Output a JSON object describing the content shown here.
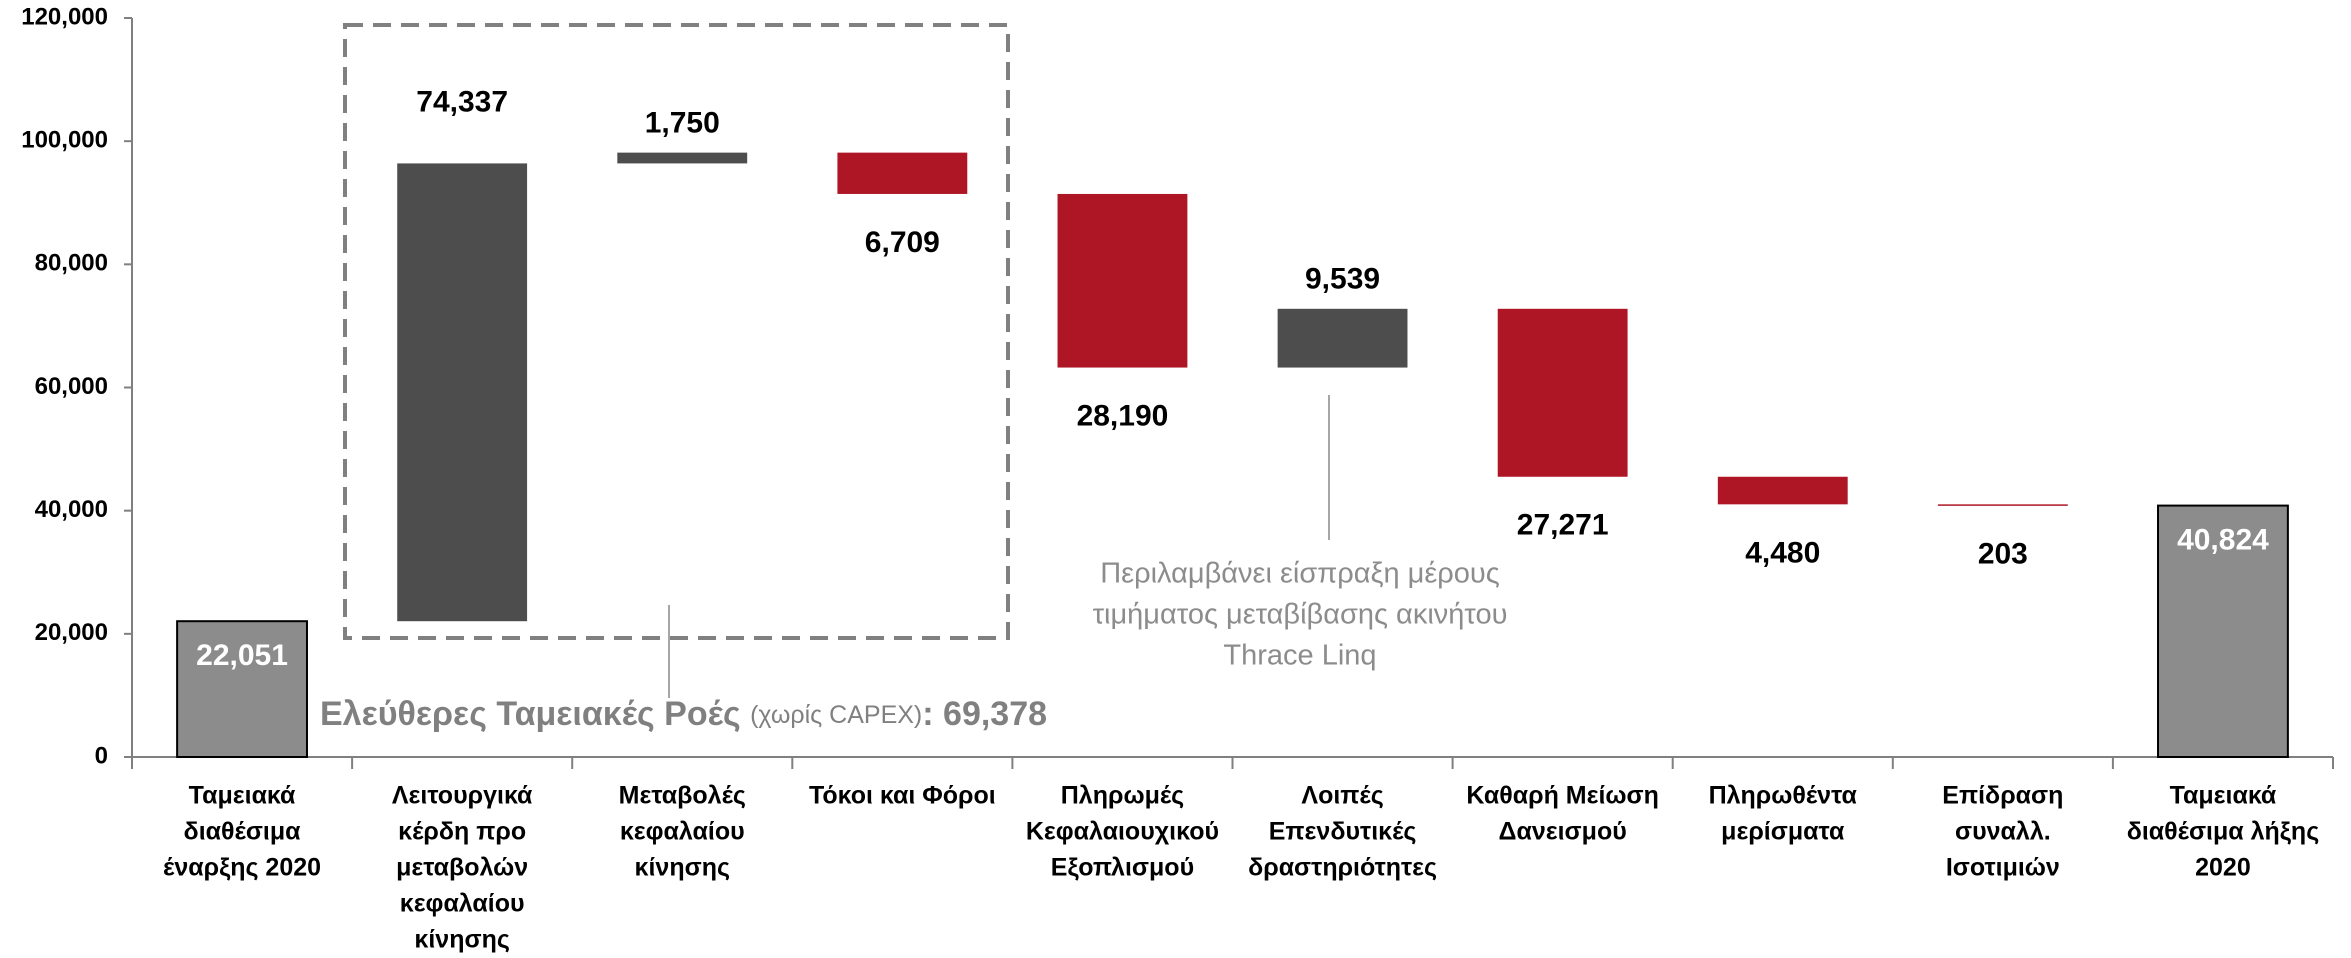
{
  "chart_data": {
    "type": "waterfall",
    "categories": [
      [
        "Ταμειακά",
        "διαθέσιμα",
        "έναρξης 2020"
      ],
      [
        "Λειτουργικά",
        "κέρδη προ",
        "μεταβολών",
        "κεφαλαίου",
        "κίνησης"
      ],
      [
        "Μεταβολές",
        "κεφαλαίου",
        "κίνησης"
      ],
      [
        "Τόκοι και Φόροι"
      ],
      [
        "Πληρωμές",
        "Κεφαλαιουχικού",
        "Εξοπλισμού"
      ],
      [
        "Λοιπές",
        "Επενδυτικές",
        "δραστηριότητες"
      ],
      [
        "Καθαρή Μείωση",
        "Δανεισμού"
      ],
      [
        "Πληρωθέντα",
        "μερίσματα"
      ],
      [
        "Επίδραση",
        "συναλλ.",
        "Ισοτιμιών"
      ],
      [
        "Ταμειακά",
        "διαθέσιμα λήξης",
        "2020"
      ]
    ],
    "values": [
      22051,
      74337,
      1750,
      -6709,
      -28190,
      9539,
      -27271,
      -4480,
      -203,
      40824
    ],
    "value_labels": [
      "22,051",
      "74,337",
      "1,750",
      "6,709",
      "28,190",
      "9,539",
      "27,271",
      "4,480",
      "203",
      "40,824"
    ],
    "totals": [
      0,
      9
    ],
    "colors": {
      "total": "#8c8c8c",
      "increase": "#4d4d4d",
      "decrease": "#ae1625"
    },
    "ylim": [
      0,
      120000
    ],
    "yticks": [
      0,
      {
        "value": 20000,
        "label": "20,000"
      },
      {
        "value": 40000,
        "label": "40,000"
      },
      {
        "value": 60000,
        "label": "60,000"
      },
      {
        "value": 80000,
        "label": "80,000"
      },
      {
        "value": 100000,
        "label": "100,000"
      },
      {
        "value": 120000,
        "label": "120,000"
      }
    ],
    "grid": false,
    "annotations": {
      "free_cash_flow": {
        "title": "Ελεύθερες Ταμειακές Ροές",
        "note": "(χωρίς CAPEX)",
        "value": ": 69,378"
      },
      "other_investing": [
        "Περιλαμβάνει είσπραξη μέρους",
        "τιμήματος μεταβίβασης ακινήτου",
        "Thrace Linq"
      ]
    }
  }
}
